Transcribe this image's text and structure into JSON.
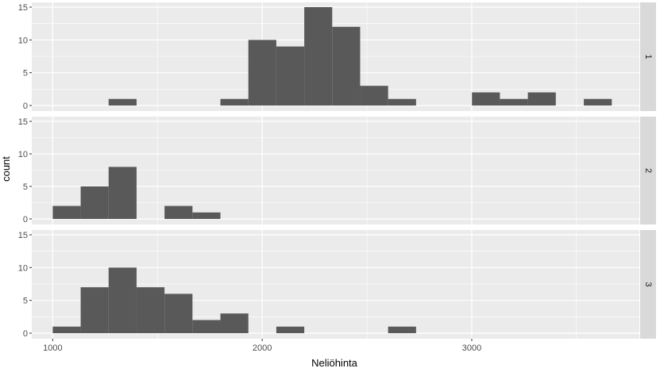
{
  "chart_data": {
    "type": "bar",
    "xlabel": "Neliöhinta",
    "ylabel": "count",
    "xlim": [
      900,
      3800
    ],
    "ylim": [
      0,
      15
    ],
    "x_ticks": [
      "1000",
      "2000",
      "3000"
    ],
    "y_ticks": [
      "0",
      "5",
      "10",
      "15"
    ],
    "bin_width": 133.4,
    "grid": true,
    "colors": {
      "bar": "#595959",
      "panel_bg": "#ebebeb",
      "grid": "#ffffff",
      "strip_bg": "#d9d9d9",
      "text": "#4d4d4d",
      "title": "#000000"
    },
    "facets": [
      {
        "label": "1",
        "bins": [
          {
            "x": 1266.8,
            "count": 1
          },
          {
            "x": 1800.4,
            "count": 1
          },
          {
            "x": 1933.8,
            "count": 10
          },
          {
            "x": 2067.2,
            "count": 9
          },
          {
            "x": 2200.6,
            "count": 15
          },
          {
            "x": 2334.0,
            "count": 12
          },
          {
            "x": 2467.4,
            "count": 3
          },
          {
            "x": 2600.8,
            "count": 1
          },
          {
            "x": 3001.0,
            "count": 2
          },
          {
            "x": 3134.4,
            "count": 1
          },
          {
            "x": 3267.8,
            "count": 2
          },
          {
            "x": 3535.0,
            "count": 1
          }
        ]
      },
      {
        "label": "2",
        "bins": [
          {
            "x": 1000.0,
            "count": 2
          },
          {
            "x": 1133.4,
            "count": 5
          },
          {
            "x": 1266.8,
            "count": 8
          },
          {
            "x": 1533.6,
            "count": 2
          },
          {
            "x": 1667.0,
            "count": 1
          }
        ]
      },
      {
        "label": "3",
        "bins": [
          {
            "x": 1000.0,
            "count": 1
          },
          {
            "x": 1133.4,
            "count": 7
          },
          {
            "x": 1266.8,
            "count": 10
          },
          {
            "x": 1400.2,
            "count": 7
          },
          {
            "x": 1533.6,
            "count": 6
          },
          {
            "x": 1667.0,
            "count": 2
          },
          {
            "x": 1800.4,
            "count": 3
          },
          {
            "x": 2067.2,
            "count": 1
          },
          {
            "x": 2600.8,
            "count": 1
          }
        ]
      }
    ]
  }
}
